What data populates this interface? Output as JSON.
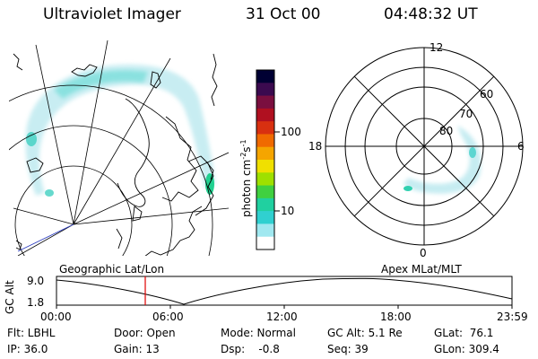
{
  "header": {
    "instrument": "Ultraviolet Imager",
    "date": "31 Oct 00",
    "time": "04:48:32 UT"
  },
  "colorbar": {
    "unit_text": "photon cm",
    "unit_exp1": "-2",
    "unit_s": "s",
    "unit_exp2": "-1",
    "tick_100": "100",
    "tick_10": "10",
    "scale": "log",
    "colors": [
      "#000033",
      "#3b0a4f",
      "#7a0f3f",
      "#b01020",
      "#d83010",
      "#f06a00",
      "#f5a500",
      "#f0e000",
      "#9fe000",
      "#40d040",
      "#20d0a0",
      "#30d0d0",
      "#a0e8f0",
      "#ffffff"
    ]
  },
  "polar_plot": {
    "mlt_labels": {
      "top": "12",
      "left": "18",
      "right": "6",
      "bottom": "0"
    },
    "lat_labels": [
      "60",
      "70",
      "80"
    ]
  },
  "timeline": {
    "y_axis_label": "GC Alt",
    "y_ticks": [
      "9.0",
      "1.8"
    ],
    "left_caption": "Geographic Lat/Lon",
    "right_caption": "Apex MLat/MLT",
    "x_ticks": [
      "00:00",
      "06:00",
      "12:00",
      "18:00",
      "23:59"
    ],
    "marker_color": "#e00000"
  },
  "info": {
    "flt": "Flt: LBHL",
    "ip": "IP: 36.0",
    "door": "Door: Open",
    "gain": "Gain: 13",
    "mode": "Mode: Normal",
    "dsp": "Dsp:    -0.8",
    "gcalt": "GC Alt: 5.1 Re",
    "seq": "Seq: 39",
    "glat": "GLat:  76.1",
    "glon": "GLon: 309.4"
  }
}
